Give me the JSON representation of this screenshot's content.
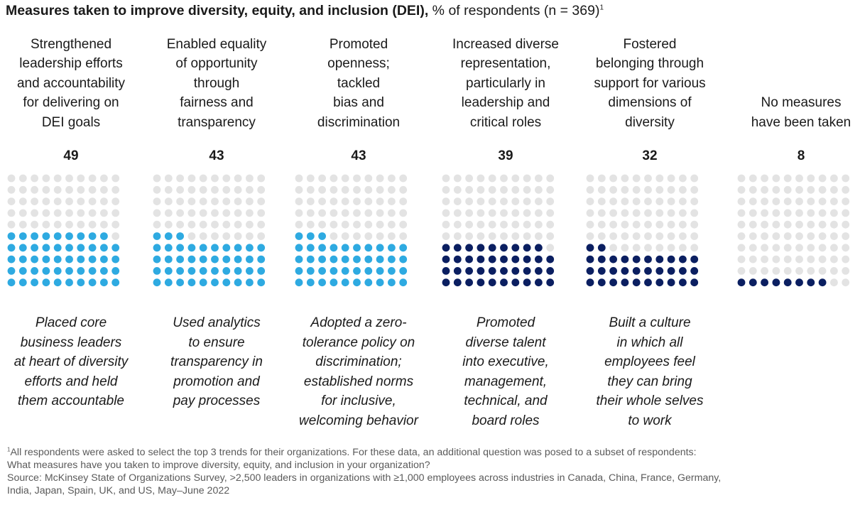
{
  "title": {
    "bold": "Measures taken to improve diversity, equity, and inclusion (DEI),",
    "rest": " % of respondents (n = 369)",
    "sup": "1"
  },
  "colors": {
    "empty_dot": "#e3e3e3",
    "light_blue": "#2eaae1",
    "dark_navy": "#0b1f61"
  },
  "chart_data": {
    "type": "waffle",
    "grid": "10x10",
    "categories": [
      "Strengthened leadership efforts and accountability for delivering on DEI goals",
      "Enabled equality of opportunity through fairness and transparency",
      "Promoted openness; tackled bias and discrimination",
      "Increased diverse representation, particularly in leadership and critical roles",
      "Fostered belonging through support for various dimensions of diversity",
      "No measures have been taken"
    ],
    "values": [
      49,
      43,
      43,
      39,
      32,
      8
    ],
    "columns": [
      {
        "label_lines": [
          "Strengthened",
          "leadership efforts",
          "and accountability",
          "for delivering on",
          "DEI goals"
        ],
        "value": "49",
        "pct": 49,
        "color": "#2eaae1",
        "desc_lines": [
          "Placed core",
          "business leaders",
          "at heart of diversity",
          "efforts and held",
          "them accountable"
        ]
      },
      {
        "label_lines": [
          "Enabled equality",
          "of opportunity",
          "through",
          "fairness and",
          "transparency"
        ],
        "value": "43",
        "pct": 43,
        "color": "#2eaae1",
        "desc_lines": [
          "Used analytics",
          "to ensure",
          "transparency in",
          "promotion and",
          "pay processes"
        ]
      },
      {
        "label_lines": [
          "Promoted",
          "openness;",
          "tackled",
          "bias and",
          "discrimination"
        ],
        "value": "43",
        "pct": 43,
        "color": "#2eaae1",
        "desc_lines": [
          "Adopted a zero-",
          "tolerance policy on",
          "discrimination;",
          "established norms",
          "for inclusive,",
          "welcoming behavior"
        ]
      },
      {
        "label_lines": [
          "Increased diverse",
          "representation,",
          "particularly in",
          "leadership and",
          "critical roles"
        ],
        "value": "39",
        "pct": 39,
        "color": "#0b1f61",
        "desc_lines": [
          "Promoted",
          "diverse talent",
          "into executive,",
          "management,",
          "technical, and",
          "board roles"
        ]
      },
      {
        "label_lines": [
          "Fostered",
          "belonging through",
          "support for various",
          "dimensions of",
          "diversity"
        ],
        "value": "32",
        "pct": 32,
        "color": "#0b1f61",
        "desc_lines": [
          "Built a culture",
          "in which all",
          "employees feel",
          "they can bring",
          "their whole selves",
          "to work"
        ]
      },
      {
        "label_lines": [
          "No measures",
          "have been taken"
        ],
        "value": "8",
        "pct": 8,
        "color": "#0b1f61",
        "desc_lines": []
      }
    ]
  },
  "footnote": {
    "sup": "1",
    "lines": [
      "All respondents were asked to select the top 3 trends for their organizations. For these data, an additional question was posed to a subset of respondents:",
      "What measures have you taken to improve diversity, equity, and inclusion in your organization?",
      "Source: McKinsey State of Organizations Survey, >2,500 leaders in organizations with ≥1,000 employees across industries in Canada, China, France, Germany,",
      "India, Japan, Spain, UK, and US, May–June 2022"
    ]
  }
}
